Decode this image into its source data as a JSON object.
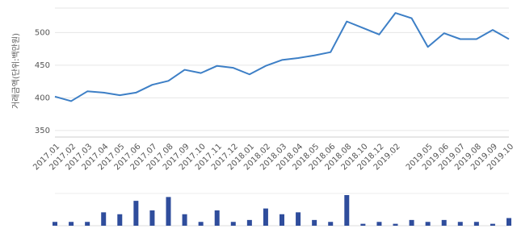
{
  "chart_data": {
    "type": "line",
    "y_label": "거래금액(단위:백만원)",
    "categories": [
      "2017.01",
      "2017.02",
      "2017.03",
      "2017.04",
      "2017.05",
      "2017.06",
      "2017.07",
      "2017.08",
      "2017.09",
      "2017.10",
      "2017.11",
      "2017.12",
      "2018.01",
      "2018.02",
      "2018.03",
      "2018.04",
      "2018.05",
      "2018.06",
      "2018.08",
      "2018.10",
      "2018.12",
      "2019.02",
      null,
      "2019.05",
      "2019.06",
      "2019.07",
      "2019.08",
      "2019.09",
      "2019.10"
    ],
    "values": [
      402,
      395,
      410,
      408,
      404,
      408,
      420,
      426,
      443,
      438,
      449,
      446,
      436,
      449,
      458,
      461,
      465,
      470,
      517,
      507,
      497,
      530,
      522,
      478,
      499,
      490,
      490,
      504,
      490
    ],
    "color": "#3d7fc6",
    "ylim": [
      340,
      540
    ],
    "yticks": [
      350,
      400,
      450,
      500
    ],
    "grid": true,
    "volume": {
      "values": [
        2,
        2,
        2,
        7,
        6,
        13,
        8,
        15,
        6,
        2,
        8,
        2,
        3,
        9,
        6,
        7,
        3,
        2,
        16,
        1,
        2,
        1,
        3,
        2,
        3,
        2,
        2,
        1,
        4
      ],
      "color": "#2f4d9c"
    }
  }
}
